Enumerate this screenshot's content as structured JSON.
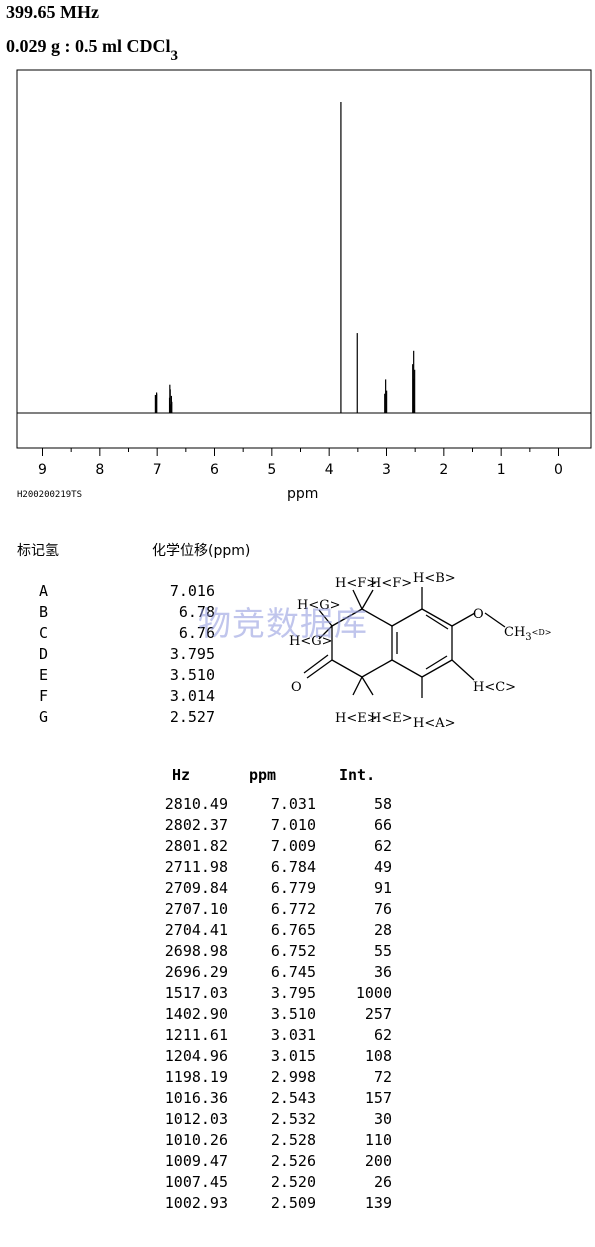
{
  "header": {
    "frequency": "399.65 MHz",
    "sample": "0.029 g : 0.5 ml CDCl",
    "sample_subscript": "3"
  },
  "chart_data": {
    "type": "line",
    "xlabel": "ppm",
    "xlim": [
      9.3,
      -0.3
    ],
    "x_ticks": [
      "9",
      "8",
      "7",
      "6",
      "5",
      "4",
      "3",
      "2",
      "1",
      "0"
    ],
    "spectrum_id": "H200200219TS",
    "series": [
      {
        "peaks": [
          {
            "ppm": 7.031,
            "int": 58
          },
          {
            "ppm": 7.01,
            "int": 66
          },
          {
            "ppm": 7.009,
            "int": 62
          },
          {
            "ppm": 6.784,
            "int": 49
          },
          {
            "ppm": 6.779,
            "int": 91
          },
          {
            "ppm": 6.772,
            "int": 76
          },
          {
            "ppm": 6.765,
            "int": 28
          },
          {
            "ppm": 6.752,
            "int": 55
          },
          {
            "ppm": 6.745,
            "int": 36
          },
          {
            "ppm": 3.795,
            "int": 1000
          },
          {
            "ppm": 3.51,
            "int": 257
          },
          {
            "ppm": 3.031,
            "int": 62
          },
          {
            "ppm": 3.015,
            "int": 108
          },
          {
            "ppm": 2.998,
            "int": 72
          },
          {
            "ppm": 2.543,
            "int": 157
          },
          {
            "ppm": 2.532,
            "int": 30
          },
          {
            "ppm": 2.528,
            "int": 110
          },
          {
            "ppm": 2.526,
            "int": 200
          },
          {
            "ppm": 2.52,
            "int": 26
          },
          {
            "ppm": 2.509,
            "int": 139
          }
        ]
      }
    ]
  },
  "assignment": {
    "col_label": "标记氢",
    "col_shift": "化学位移(ppm)",
    "rows": [
      {
        "label": "A",
        "shift": "7.016"
      },
      {
        "label": "B",
        "shift": "6.78"
      },
      {
        "label": "C",
        "shift": "6.76"
      },
      {
        "label": "D",
        "shift": "3.795"
      },
      {
        "label": "E",
        "shift": "3.510"
      },
      {
        "label": "F",
        "shift": "3.014"
      },
      {
        "label": "G",
        "shift": "2.527"
      }
    ]
  },
  "structure": {
    "labels": {
      "hF1": "H<F>",
      "hF2": "H<F>",
      "hB": "H<B>",
      "hG1": "H<G>",
      "hG2": "H<G>",
      "o_ring": "O",
      "o_keto": "O",
      "ch3": "CH",
      "ch3_sub": "3",
      "d": "<D>",
      "hC": "H<C>",
      "hE1": "H<E>",
      "hE2": "H<E>",
      "hA": "H<A>"
    }
  },
  "watermark": "物竞数据库",
  "peak_table": {
    "headers": [
      "Hz",
      "ppm",
      "Int."
    ],
    "rows": [
      [
        "2810.49",
        "7.031",
        "58"
      ],
      [
        "2802.37",
        "7.010",
        "66"
      ],
      [
        "2801.82",
        "7.009",
        "62"
      ],
      [
        "2711.98",
        "6.784",
        "49"
      ],
      [
        "2709.84",
        "6.779",
        "91"
      ],
      [
        "2707.10",
        "6.772",
        "76"
      ],
      [
        "2704.41",
        "6.765",
        "28"
      ],
      [
        "2698.98",
        "6.752",
        "55"
      ],
      [
        "2696.29",
        "6.745",
        "36"
      ],
      [
        "1517.03",
        "3.795",
        "1000"
      ],
      [
        "1402.90",
        "3.510",
        "257"
      ],
      [
        "1211.61",
        "3.031",
        "62"
      ],
      [
        "1204.96",
        "3.015",
        "108"
      ],
      [
        "1198.19",
        "2.998",
        "72"
      ],
      [
        "1016.36",
        "2.543",
        "157"
      ],
      [
        "1012.03",
        "2.532",
        "30"
      ],
      [
        "1010.26",
        "2.528",
        "110"
      ],
      [
        "1009.47",
        "2.526",
        "200"
      ],
      [
        "1007.45",
        "2.520",
        "26"
      ],
      [
        "1002.93",
        "2.509",
        "139"
      ]
    ]
  }
}
